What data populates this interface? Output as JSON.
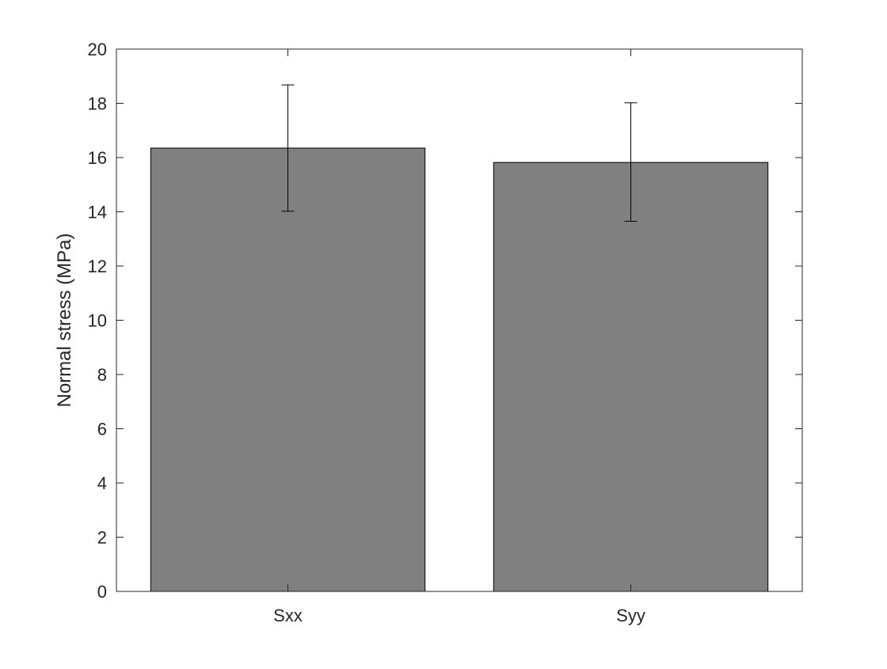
{
  "chart_data": {
    "type": "bar",
    "categories": [
      "Sxx",
      "Syy"
    ],
    "values": [
      16.35,
      15.82
    ],
    "error_bars": {
      "lower": [
        14.02,
        13.65
      ],
      "upper": [
        18.68,
        18.02
      ]
    },
    "title": "",
    "xlabel": "",
    "ylabel": "Normal stress (MPa)",
    "ylim": [
      0,
      20
    ],
    "yticks": [
      0,
      2,
      4,
      6,
      8,
      10,
      12,
      14,
      16,
      18,
      20
    ],
    "grid": false,
    "legend": "none",
    "colors": {
      "bar_fill": "#808080",
      "bar_edge": "#000000",
      "axis": "#262626",
      "error_bar": "#000000"
    }
  }
}
